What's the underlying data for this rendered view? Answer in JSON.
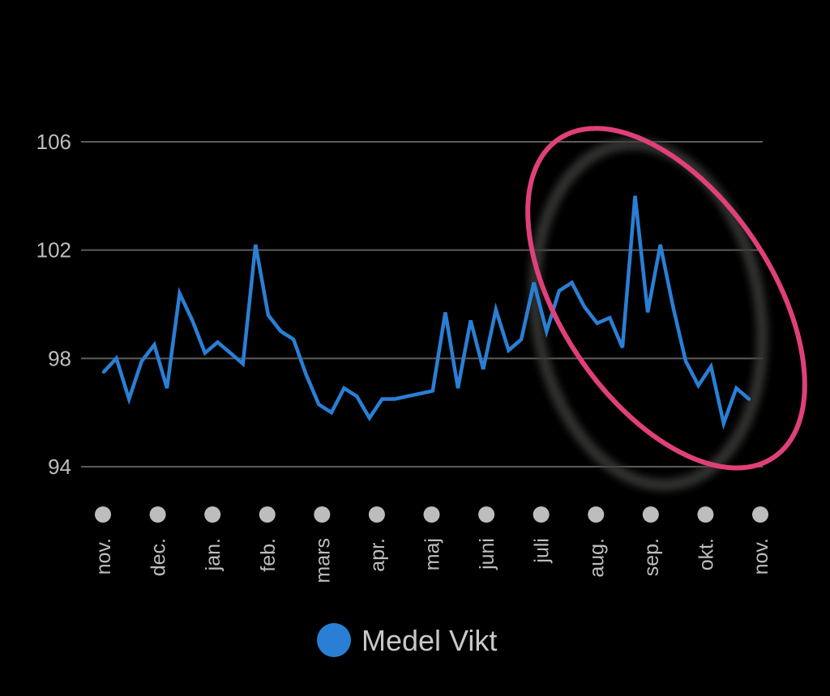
{
  "chart_data": {
    "type": "line",
    "title": "",
    "xlabel": "",
    "ylabel": "",
    "ylim": [
      92.4,
      108
    ],
    "yticks": [
      94,
      98,
      102,
      106
    ],
    "grid": true,
    "legend_position": "bottom",
    "months": [
      "nov.",
      "dec.",
      "jan.",
      "feb.",
      "mars",
      "apr.",
      "maj",
      "juni",
      "juli",
      "aug.",
      "sep.",
      "okt.",
      "nov."
    ],
    "series": [
      {
        "name": "Medel Vikt",
        "color": "#2a7fd4",
        "values": [
          97.5,
          98.0,
          96.5,
          97.9,
          98.5,
          96.9,
          100.4,
          99.4,
          98.2,
          98.6,
          98.2,
          97.8,
          102.2,
          99.6,
          99.0,
          98.7,
          97.4,
          96.3,
          96.0,
          96.9,
          96.6,
          95.8,
          96.5,
          96.5,
          96.6,
          96.7,
          96.8,
          99.7,
          96.9,
          99.4,
          97.6,
          99.8,
          98.3,
          98.7,
          100.8,
          99.0,
          100.5,
          100.8,
          99.9,
          99.3,
          99.5,
          98.4,
          104.0,
          99.7,
          102.2,
          99.9,
          97.9,
          97.0,
          97.7,
          95.6,
          96.9,
          96.5
        ]
      }
    ],
    "annotation": {
      "shape": "ellipse",
      "color": "#e0407a",
      "description_region": "juli–okt."
    }
  }
}
